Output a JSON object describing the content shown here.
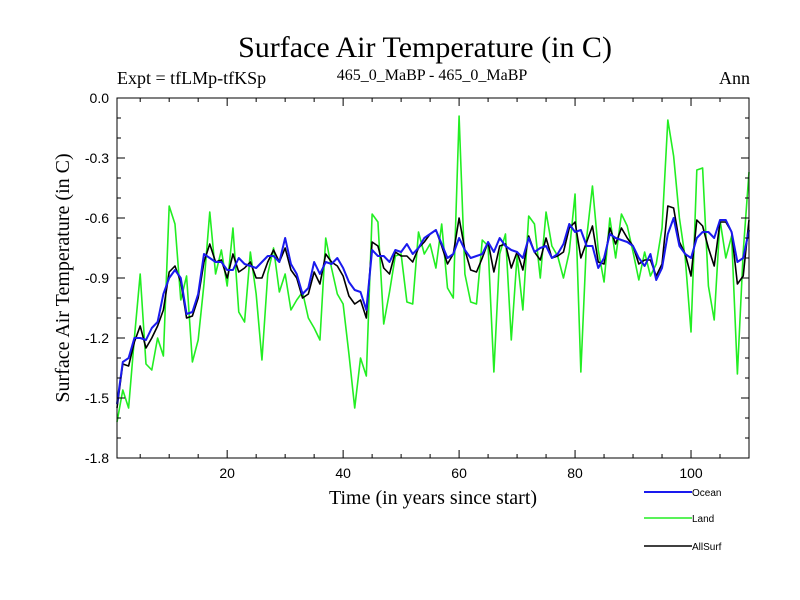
{
  "chart_data": {
    "type": "line",
    "title": "Surface Air Temperature (in C)",
    "subtitle_left": "Expt = tfLMp-tfKSp",
    "subtitle_center": "465_0_MaBP - 465_0_MaBP",
    "subtitle_right": "Ann",
    "xlabel": "Time (in years since start)",
    "ylabel": "Surface Air Temperature (in C)",
    "xlim": [
      1,
      110
    ],
    "ylim": [
      -1.8,
      0.0
    ],
    "xticks": [
      20,
      40,
      60,
      80,
      100
    ],
    "xtick_labels": [
      "20",
      "40",
      "60",
      "80",
      "100"
    ],
    "yticks": [
      0.0,
      -0.3,
      -0.6,
      -0.9,
      -1.2,
      -1.5,
      -1.8
    ],
    "ytick_labels": [
      "0.0",
      "-0.3",
      "-0.6",
      "-0.9",
      "-1.2",
      "-1.5",
      "-1.8"
    ],
    "legend_position": "bottom-right",
    "x": [
      1,
      2,
      3,
      4,
      5,
      6,
      7,
      8,
      9,
      10,
      11,
      12,
      13,
      14,
      15,
      16,
      17,
      18,
      19,
      20,
      21,
      22,
      23,
      24,
      25,
      26,
      27,
      28,
      29,
      30,
      31,
      32,
      33,
      34,
      35,
      36,
      37,
      38,
      39,
      40,
      41,
      42,
      43,
      44,
      45,
      46,
      47,
      48,
      49,
      50,
      51,
      52,
      53,
      54,
      55,
      56,
      57,
      58,
      59,
      60,
      61,
      62,
      63,
      64,
      65,
      66,
      67,
      68,
      69,
      70,
      71,
      72,
      73,
      74,
      75,
      76,
      77,
      78,
      79,
      80,
      81,
      82,
      83,
      84,
      85,
      86,
      87,
      88,
      89,
      90,
      91,
      92,
      93,
      94,
      95,
      96,
      97,
      98,
      99,
      100,
      101,
      102,
      103,
      104,
      105,
      106,
      107,
      108,
      109,
      110
    ],
    "series": [
      {
        "name": "Ocean",
        "color": "#1a1aee",
        "values": [
          -1.53,
          -1.32,
          -1.3,
          -1.2,
          -1.2,
          -1.21,
          -1.15,
          -1.12,
          -0.98,
          -0.9,
          -0.86,
          -0.9,
          -1.08,
          -1.07,
          -0.98,
          -0.78,
          -0.8,
          -0.82,
          -0.82,
          -0.86,
          -0.86,
          -0.8,
          -0.83,
          -0.84,
          -0.85,
          -0.82,
          -0.79,
          -0.79,
          -0.82,
          -0.7,
          -0.83,
          -0.88,
          -0.98,
          -0.95,
          -0.82,
          -0.88,
          -0.82,
          -0.83,
          -0.8,
          -0.85,
          -0.92,
          -0.96,
          -0.97,
          -1.06,
          -0.76,
          -0.79,
          -0.79,
          -0.82,
          -0.76,
          -0.77,
          -0.73,
          -0.78,
          -0.75,
          -0.7,
          -0.68,
          -0.66,
          -0.73,
          -0.8,
          -0.78,
          -0.7,
          -0.76,
          -0.8,
          -0.79,
          -0.78,
          -0.72,
          -0.77,
          -0.7,
          -0.74,
          -0.76,
          -0.77,
          -0.8,
          -0.7,
          -0.77,
          -0.75,
          -0.74,
          -0.8,
          -0.78,
          -0.73,
          -0.63,
          -0.67,
          -0.66,
          -0.74,
          -0.74,
          -0.85,
          -0.8,
          -0.68,
          -0.7,
          -0.71,
          -0.72,
          -0.74,
          -0.8,
          -0.84,
          -0.78,
          -0.91,
          -0.85,
          -0.68,
          -0.6,
          -0.74,
          -0.78,
          -0.8,
          -0.7,
          -0.67,
          -0.67,
          -0.7,
          -0.61,
          -0.61,
          -0.67,
          -0.82,
          -0.8,
          -0.66
        ]
      },
      {
        "name": "Land",
        "color": "#22ee22",
        "values": [
          -1.62,
          -1.46,
          -1.55,
          -1.2,
          -0.88,
          -1.33,
          -1.36,
          -1.2,
          -1.29,
          -0.54,
          -0.63,
          -1.01,
          -0.89,
          -1.32,
          -1.21,
          -0.93,
          -0.57,
          -0.88,
          -0.76,
          -0.94,
          -0.65,
          -1.07,
          -1.12,
          -0.77,
          -0.98,
          -1.31,
          -0.88,
          -0.75,
          -0.97,
          -0.88,
          -1.06,
          -1.01,
          -0.97,
          -1.1,
          -1.15,
          -1.21,
          -0.7,
          -0.85,
          -0.98,
          -1.03,
          -1.28,
          -1.55,
          -1.3,
          -1.39,
          -0.58,
          -0.62,
          -1.13,
          -0.97,
          -0.79,
          -0.78,
          -1.02,
          -1.03,
          -0.67,
          -0.78,
          -0.73,
          -0.85,
          -0.63,
          -0.95,
          -1.0,
          -0.09,
          -0.88,
          -1.02,
          -1.03,
          -0.71,
          -0.74,
          -1.37,
          -0.78,
          -0.68,
          -1.21,
          -0.79,
          -1.06,
          -0.59,
          -0.63,
          -0.9,
          -0.57,
          -0.74,
          -0.79,
          -0.9,
          -0.77,
          -0.48,
          -1.37,
          -0.7,
          -0.44,
          -0.76,
          -0.92,
          -0.6,
          -0.8,
          -0.58,
          -0.64,
          -0.77,
          -0.91,
          -0.77,
          -0.89,
          -0.83,
          -0.65,
          -0.11,
          -0.29,
          -0.6,
          -0.8,
          -1.17,
          -0.36,
          -0.35,
          -0.94,
          -1.11,
          -0.61,
          -0.8,
          -0.69,
          -1.38,
          -0.77,
          -0.37
        ]
      },
      {
        "name": "AllSurf",
        "color": "#000000",
        "values": [
          -1.55,
          -1.33,
          -1.34,
          -1.22,
          -1.14,
          -1.25,
          -1.2,
          -1.14,
          -1.06,
          -0.87,
          -0.84,
          -0.92,
          -1.1,
          -1.09,
          -1.0,
          -0.82,
          -0.73,
          -0.82,
          -0.81,
          -0.9,
          -0.78,
          -0.87,
          -0.85,
          -0.82,
          -0.9,
          -0.9,
          -0.82,
          -0.76,
          -0.82,
          -0.75,
          -0.86,
          -0.9,
          -1.0,
          -0.98,
          -0.87,
          -0.93,
          -0.78,
          -0.82,
          -0.84,
          -0.89,
          -0.99,
          -1.03,
          -1.01,
          -1.1,
          -0.72,
          -0.74,
          -0.85,
          -0.88,
          -0.77,
          -0.79,
          -0.79,
          -0.82,
          -0.75,
          -0.72,
          -0.68,
          -0.66,
          -0.74,
          -0.83,
          -0.78,
          -0.6,
          -0.76,
          -0.86,
          -0.87,
          -0.8,
          -0.72,
          -0.87,
          -0.74,
          -0.73,
          -0.85,
          -0.77,
          -0.86,
          -0.69,
          -0.77,
          -0.81,
          -0.7,
          -0.8,
          -0.79,
          -0.77,
          -0.65,
          -0.62,
          -0.8,
          -0.72,
          -0.64,
          -0.82,
          -0.83,
          -0.65,
          -0.73,
          -0.65,
          -0.7,
          -0.74,
          -0.83,
          -0.81,
          -0.81,
          -0.89,
          -0.83,
          -0.54,
          -0.55,
          -0.72,
          -0.78,
          -0.89,
          -0.61,
          -0.64,
          -0.75,
          -0.84,
          -0.62,
          -0.62,
          -0.67,
          -0.93,
          -0.89,
          -0.61
        ]
      }
    ]
  }
}
